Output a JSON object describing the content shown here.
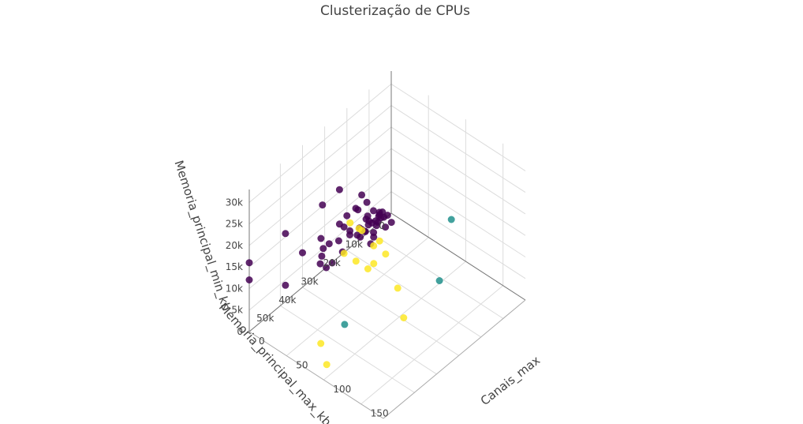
{
  "chart_data": {
    "type": "scatter3d",
    "title": "Clusterização de CPUs",
    "axes": {
      "x": {
        "label": "Canais_max",
        "range": [
          0,
          180
        ],
        "ticks": [
          0,
          50,
          100,
          150
        ],
        "tick_labels": [
          "0",
          "50",
          "100",
          "150"
        ]
      },
      "y": {
        "label": "Memoria_principal_max_kb",
        "range": [
          0,
          64000
        ],
        "ticks": [
          0,
          10000,
          20000,
          30000,
          40000,
          50000
        ],
        "tick_labels": [
          "0",
          "10k",
          "20k",
          "30k",
          "40k",
          "50k"
        ]
      },
      "z": {
        "label": "Memoria_principal_min_kb",
        "range": [
          0,
          33000
        ],
        "ticks": [
          0,
          5000,
          10000,
          15000,
          20000,
          25000,
          30000
        ],
        "tick_labels": [
          "0",
          "5k",
          "10k",
          "15k",
          "20k",
          "25k",
          "30k"
        ]
      }
    },
    "colors": {
      "cluster_0": "#440154",
      "cluster_1": "#21918c",
      "cluster_2": "#fde725"
    },
    "grid": true,
    "series": [
      {
        "color": "#440154",
        "points": [
          [
            1,
            2000,
            500
          ],
          [
            2,
            4000,
            1000
          ],
          [
            3,
            8000,
            2000
          ],
          [
            4,
            8000,
            1000
          ],
          [
            6,
            16000,
            2000
          ],
          [
            8,
            16000,
            4000
          ],
          [
            2,
            12000,
            4000
          ],
          [
            1,
            6000,
            2000
          ],
          [
            3,
            16000,
            8000
          ],
          [
            4,
            20000,
            4000
          ],
          [
            8,
            24000,
            8000
          ],
          [
            2,
            32000,
            4000
          ],
          [
            1,
            32000,
            8000
          ],
          [
            3,
            32000,
            16000
          ],
          [
            2,
            24000,
            16000
          ],
          [
            0,
            16000,
            8000
          ],
          [
            0,
            8000,
            4000
          ],
          [
            5,
            12000,
            3000
          ],
          [
            6,
            8000,
            2000
          ],
          [
            12,
            16000,
            4000
          ],
          [
            16,
            16000,
            8000
          ],
          [
            12,
            12000,
            2000
          ],
          [
            0,
            4000,
            2000
          ],
          [
            0,
            32000,
            2000
          ],
          [
            1,
            12000,
            1000
          ],
          [
            2,
            6000,
            3000
          ],
          [
            4,
            6000,
            2000
          ],
          [
            6,
            12000,
            4000
          ],
          [
            8,
            32000,
            2000
          ],
          [
            10,
            12000,
            4000
          ],
          [
            16,
            32000,
            4000
          ],
          [
            24,
            16000,
            4000
          ],
          [
            20,
            16000,
            2000
          ],
          [
            16,
            8000,
            2000
          ],
          [
            8,
            8000,
            4000
          ],
          [
            2,
            16000,
            2000
          ],
          [
            3,
            12000,
            8000
          ],
          [
            1,
            24000,
            4000
          ],
          [
            0,
            20000,
            8000
          ],
          [
            4,
            32000,
            6000
          ],
          [
            5,
            16000,
            4000
          ],
          [
            6,
            24000,
            2000
          ],
          [
            0,
            40000,
            8000
          ],
          [
            1,
            48000,
            4000
          ],
          [
            0,
            64000,
            16000
          ],
          [
            0,
            64000,
            12000
          ],
          [
            1,
            48000,
            16000
          ],
          [
            12,
            32000,
            8000
          ],
          [
            8,
            16000,
            12000
          ],
          [
            2,
            24000,
            8000
          ],
          [
            16,
            24000,
            8000
          ],
          [
            24,
            8000,
            4000
          ]
        ]
      },
      {
        "color": "#21918c",
        "points": [
          [
            176,
            32000,
            32000
          ],
          [
            160,
            32000,
            16000
          ],
          [
            128,
            64000,
            16000
          ]
        ]
      },
      {
        "color": "#fde725",
        "points": [
          [
            52,
            32000,
            16000
          ],
          [
            56,
            32000,
            16000
          ],
          [
            64,
            24000,
            8000
          ],
          [
            48,
            32000,
            8000
          ],
          [
            64,
            32000,
            8000
          ],
          [
            32,
            16000,
            4000
          ],
          [
            24,
            16000,
            2000
          ],
          [
            32,
            32000,
            8000
          ],
          [
            48,
            24000,
            4000
          ],
          [
            104,
            32000,
            8000
          ],
          [
            112,
            32000,
            2000
          ],
          [
            96,
            64000,
            8000
          ],
          [
            104,
            64000,
            4000
          ],
          [
            40,
            32000,
            16000
          ]
        ]
      }
    ]
  }
}
